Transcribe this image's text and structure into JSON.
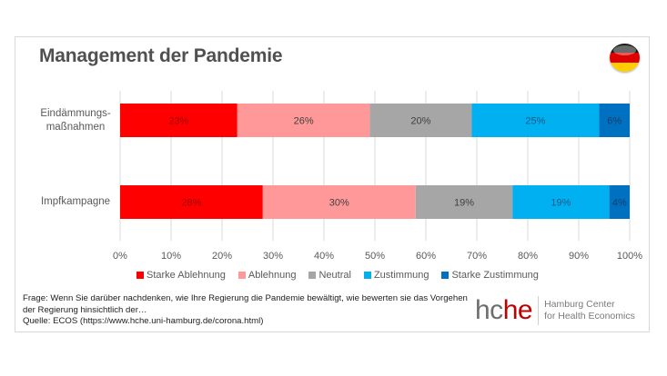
{
  "chart_data": {
    "type": "bar",
    "orientation": "horizontal",
    "stacked": true,
    "title": "Management der Pandemie",
    "categories": [
      "Eindämmungs-\nmaßnahmen",
      "Impfkampagne"
    ],
    "category_lines": [
      [
        "Eindämmungs-",
        "maßnahmen"
      ],
      [
        "Impfkampagne"
      ]
    ],
    "series": [
      {
        "name": "Starke Ablehnung",
        "color": "#ff0000",
        "values": [
          23,
          28
        ],
        "labels": [
          "23%",
          "28%"
        ]
      },
      {
        "name": "Ablehnung",
        "color": "#ff9999",
        "values": [
          26,
          30
        ],
        "labels": [
          "26%",
          "30%"
        ]
      },
      {
        "name": "Neutral",
        "color": "#a6a6a6",
        "values": [
          20,
          19
        ],
        "labels": [
          "20%",
          "19%"
        ]
      },
      {
        "name": "Zustimmung",
        "color": "#00b0f0",
        "values": [
          25,
          19
        ],
        "labels": [
          "25%",
          "19%"
        ]
      },
      {
        "name": "Starke Zustimmung",
        "color": "#0070c0",
        "values": [
          6,
          4
        ],
        "labels": [
          "6%",
          "4%"
        ]
      }
    ],
    "xlim": [
      0,
      100
    ],
    "xticks": [
      "0%",
      "10%",
      "20%",
      "30%",
      "40%",
      "50%",
      "60%",
      "70%",
      "80%",
      "90%",
      "100%"
    ],
    "grid": true,
    "legend_position": "bottom",
    "xlabel": "",
    "ylabel": ""
  },
  "flag": {
    "name": "germany-flag",
    "colors": [
      "#1a1a1a",
      "#dd0000",
      "#ffce00"
    ]
  },
  "footnote": {
    "line1": "Frage: Wenn Sie darüber nachdenken, wie Ihre Regierung die Pandemie bewältigt, wie bewerten sie das Vorgehen",
    "line2": "der Regierung hinsichtlich der…",
    "line3": "Quelle: ECOS (https://www.hche.uni-hamburg.de/corona.html)"
  },
  "logo": {
    "hc": "hc",
    "he": "he",
    "line1": "Hamburg Center",
    "line2": "for Health Economics"
  }
}
